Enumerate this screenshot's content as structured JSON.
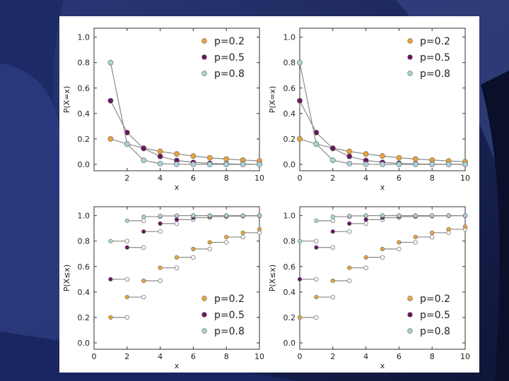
{
  "slide": {
    "background": "#141e4a",
    "panel": "#ffffff"
  },
  "colors": {
    "p02": "#e8a33a",
    "p05": "#6b1462",
    "p08": "#a8d2d6"
  },
  "chart_data": [
    {
      "type": "line",
      "title": "",
      "xlabel": "x",
      "ylabel": "P(X=x)",
      "xlim": [
        0,
        10
      ],
      "ylim": [
        -0.05,
        1.07
      ],
      "xticks": [
        "2",
        "4",
        "6",
        "8",
        "10"
      ],
      "yticks": [
        "0.0",
        "0.2",
        "0.4",
        "0.6",
        "0.8",
        "1.0"
      ],
      "grid": false,
      "legend": "top-right",
      "series": [
        {
          "name": "p=0.2",
          "x": [
            1,
            2,
            3,
            4,
            5,
            6,
            7,
            8,
            9,
            10
          ],
          "y": [
            0.2,
            0.16,
            0.128,
            0.102,
            0.082,
            0.066,
            0.052,
            0.042,
            0.034,
            0.027
          ]
        },
        {
          "name": "p=0.5",
          "x": [
            1,
            2,
            3,
            4,
            5,
            6,
            7,
            8,
            9,
            10
          ],
          "y": [
            0.5,
            0.25,
            0.125,
            0.0625,
            0.031,
            0.016,
            0.008,
            0.004,
            0.002,
            0.001
          ]
        },
        {
          "name": "p=0.8",
          "x": [
            1,
            2,
            3,
            4,
            5,
            6,
            7,
            8,
            9,
            10
          ],
          "y": [
            0.8,
            0.16,
            0.032,
            0.006,
            0.001,
            0,
            0,
            0,
            0,
            0
          ]
        }
      ]
    },
    {
      "type": "line",
      "title": "",
      "xlabel": "x",
      "ylabel": "P(X=x)",
      "xlim": [
        0,
        10
      ],
      "ylim": [
        -0.05,
        1.07
      ],
      "xticks": [
        "0",
        "2",
        "4",
        "6",
        "8",
        "10"
      ],
      "yticks": [
        "0.0",
        "0.2",
        "0.4",
        "0.6",
        "0.8",
        "1.0"
      ],
      "grid": false,
      "legend": "top-right",
      "series": [
        {
          "name": "p=0.2",
          "x": [
            0,
            1,
            2,
            3,
            4,
            5,
            6,
            7,
            8,
            9,
            10
          ],
          "y": [
            0.2,
            0.16,
            0.128,
            0.102,
            0.082,
            0.066,
            0.052,
            0.042,
            0.034,
            0.027,
            0.021
          ]
        },
        {
          "name": "p=0.5",
          "x": [
            0,
            1,
            2,
            3,
            4,
            5,
            6,
            7,
            8,
            9,
            10
          ],
          "y": [
            0.5,
            0.25,
            0.125,
            0.0625,
            0.031,
            0.016,
            0.008,
            0.004,
            0.002,
            0.001,
            0.0005
          ]
        },
        {
          "name": "p=0.8",
          "x": [
            0,
            1,
            2,
            3,
            4,
            5,
            6,
            7,
            8,
            9,
            10
          ],
          "y": [
            0.8,
            0.16,
            0.032,
            0.006,
            0.001,
            0,
            0,
            0,
            0,
            0,
            0
          ]
        }
      ]
    },
    {
      "type": "step",
      "title": "",
      "xlabel": "x",
      "ylabel": "P(X≤x)",
      "xlim": [
        0,
        10
      ],
      "ylim": [
        -0.05,
        1.07
      ],
      "xticks": [
        "0",
        "2",
        "4",
        "6",
        "8",
        "10"
      ],
      "yticks": [
        "0.0",
        "0.2",
        "0.4",
        "0.6",
        "0.8",
        "1.0"
      ],
      "grid": false,
      "legend": "bottom-right",
      "series": [
        {
          "name": "p=0.2",
          "x": [
            1,
            2,
            3,
            4,
            5,
            6,
            7,
            8,
            9,
            10
          ],
          "y": [
            0.2,
            0.36,
            0.488,
            0.59,
            0.672,
            0.738,
            0.79,
            0.832,
            0.866,
            0.893
          ]
        },
        {
          "name": "p=0.5",
          "x": [
            1,
            2,
            3,
            4,
            5,
            6,
            7,
            8,
            9,
            10
          ],
          "y": [
            0.5,
            0.75,
            0.875,
            0.9375,
            0.969,
            0.984,
            0.992,
            0.996,
            0.998,
            0.999
          ]
        },
        {
          "name": "p=0.8",
          "x": [
            1,
            2,
            3,
            4,
            5,
            6,
            7,
            8,
            9,
            10
          ],
          "y": [
            0.8,
            0.96,
            0.992,
            0.998,
            1.0,
            1.0,
            1.0,
            1.0,
            1.0,
            1.0
          ]
        }
      ]
    },
    {
      "type": "step",
      "title": "",
      "xlabel": "x",
      "ylabel": "P(X≤x)",
      "xlim": [
        0,
        10
      ],
      "ylim": [
        -0.05,
        1.07
      ],
      "xticks": [
        "0",
        "2",
        "4",
        "6",
        "8",
        "10"
      ],
      "yticks": [
        "0.0",
        "0.2",
        "0.4",
        "0.6",
        "0.8",
        "1.0"
      ],
      "grid": false,
      "legend": "bottom-right",
      "series": [
        {
          "name": "p=0.2",
          "x": [
            0,
            1,
            2,
            3,
            4,
            5,
            6,
            7,
            8,
            9,
            10
          ],
          "y": [
            0.2,
            0.36,
            0.488,
            0.59,
            0.672,
            0.738,
            0.79,
            0.832,
            0.866,
            0.893,
            0.914
          ]
        },
        {
          "name": "p=0.5",
          "x": [
            0,
            1,
            2,
            3,
            4,
            5,
            6,
            7,
            8,
            9,
            10
          ],
          "y": [
            0.5,
            0.75,
            0.875,
            0.9375,
            0.969,
            0.984,
            0.992,
            0.996,
            0.998,
            0.999,
            1.0
          ]
        },
        {
          "name": "p=0.8",
          "x": [
            0,
            1,
            2,
            3,
            4,
            5,
            6,
            7,
            8,
            9,
            10
          ],
          "y": [
            0.8,
            0.96,
            0.992,
            0.998,
            1.0,
            1.0,
            1.0,
            1.0,
            1.0,
            1.0,
            1.0
          ]
        }
      ]
    }
  ]
}
